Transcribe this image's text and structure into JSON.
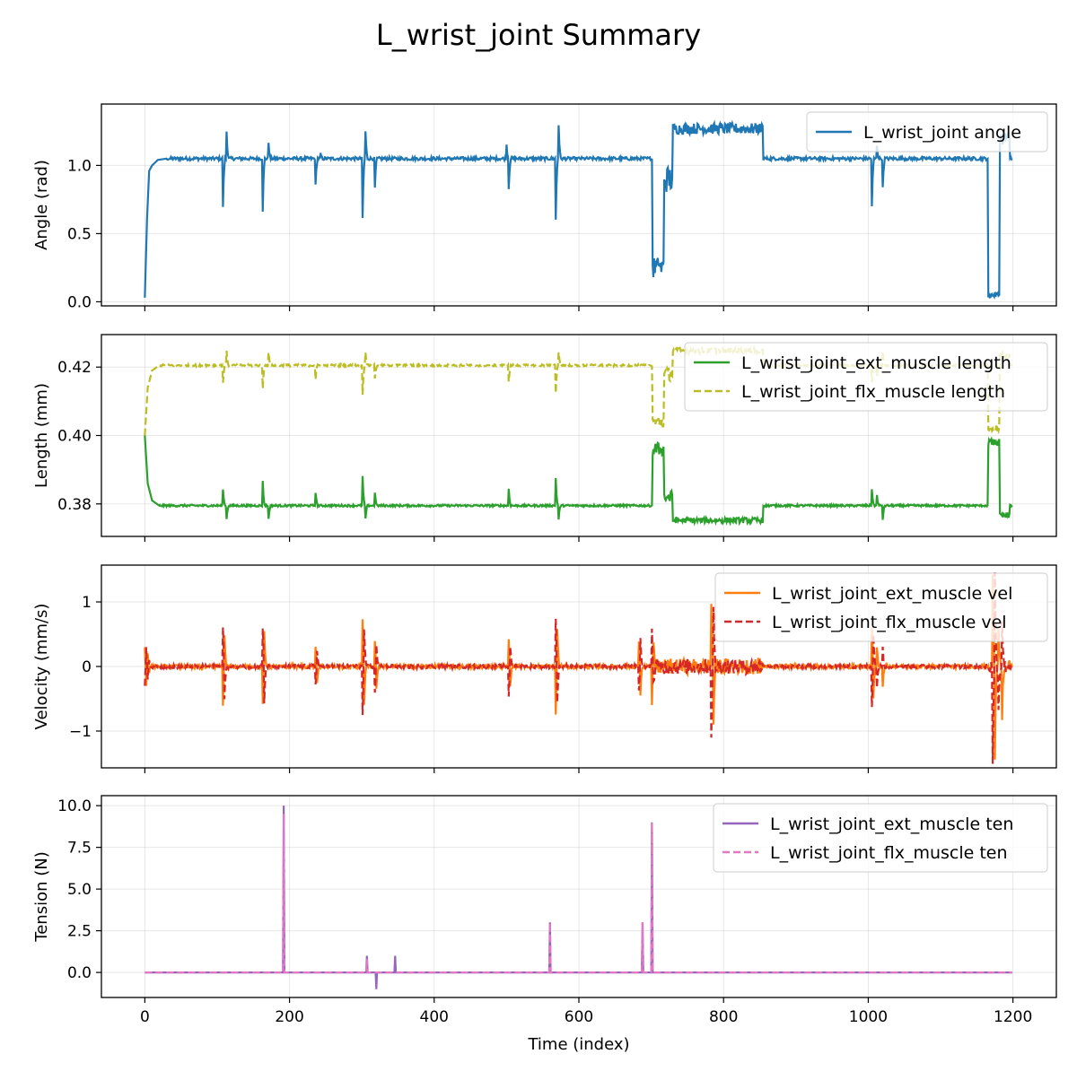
{
  "figure": {
    "title": "L_wrist_joint Summary"
  },
  "chart_data": [
    {
      "type": "line",
      "ylabel": "Angle (rad)",
      "xlim": [
        -60,
        1260
      ],
      "ylim": [
        -0.03,
        1.45
      ],
      "yticks": [
        0.0,
        0.5,
        1.0
      ],
      "ytick_labels": [
        "0.0",
        "0.5",
        "1.0"
      ],
      "grid": true,
      "legend_placement": "upper-right",
      "series": [
        {
          "name": "L_wrist_joint angle",
          "color": "#1f77b4",
          "dash": "solid",
          "base": 1.05,
          "noise": 0.012,
          "points": [
            [
              0,
              0.03
            ],
            [
              3,
              0.6
            ],
            [
              6,
              0.96
            ],
            [
              10,
              1.0
            ],
            [
              18,
              1.04
            ],
            [
              30,
              1.05
            ]
          ],
          "spikes": [
            [
              108,
              -0.35
            ],
            [
              113,
              0.2
            ],
            [
              163,
              -0.38
            ],
            [
              171,
              0.12
            ],
            [
              236,
              -0.2
            ],
            [
              243,
              0.03
            ],
            [
              301,
              -0.44
            ],
            [
              305,
              0.2
            ],
            [
              318,
              -0.22
            ],
            [
              500,
              0.1
            ],
            [
              503,
              -0.22
            ],
            [
              568,
              -0.45
            ],
            [
              572,
              0.25
            ],
            [
              710,
              0.07
            ],
            [
              1005,
              -0.35
            ],
            [
              1012,
              0.1
            ],
            [
              1020,
              -0.22
            ]
          ],
          "segments": [
            {
              "from": 702,
              "to": 718,
              "value": 0.25,
              "noise": 0.08
            },
            {
              "from": 718,
              "to": 730,
              "value": 0.9,
              "noise": 0.1
            },
            {
              "from": 730,
              "to": 855,
              "value": 1.27,
              "noise": 0.04
            },
            {
              "from": 1166,
              "to": 1182,
              "value": 0.05,
              "noise": 0.02
            },
            {
              "from": 1182,
              "to": 1196,
              "value": 1.2,
              "noise": 0.05
            }
          ]
        }
      ]
    },
    {
      "type": "line",
      "ylabel": "Length (mm)",
      "xlim": [
        -60,
        1260
      ],
      "ylim": [
        0.3705,
        0.4295
      ],
      "yticks": [
        0.38,
        0.4,
        0.42
      ],
      "ytick_labels": [
        "0.38",
        "0.40",
        "0.42"
      ],
      "grid": true,
      "legend_placement": "upper-right",
      "series": [
        {
          "name": "L_wrist_joint_ext_muscle length",
          "color": "#2ca02c",
          "dash": "solid",
          "base": 0.3795,
          "noise": 0.0003,
          "points": [
            [
              0,
              0.4
            ],
            [
              4,
              0.386
            ],
            [
              10,
              0.381
            ],
            [
              20,
              0.3795
            ]
          ],
          "spikes": [
            [
              108,
              0.005
            ],
            [
              113,
              -0.004
            ],
            [
              163,
              0.007
            ],
            [
              171,
              -0.004
            ],
            [
              236,
              0.004
            ],
            [
              301,
              0.0085
            ],
            [
              305,
              -0.004
            ],
            [
              318,
              0.004
            ],
            [
              503,
              0.005
            ],
            [
              568,
              0.008
            ],
            [
              572,
              -0.004
            ],
            [
              1005,
              0.005
            ],
            [
              1012,
              0.003
            ],
            [
              1020,
              -0.004
            ]
          ],
          "segments": [
            {
              "from": 702,
              "to": 718,
              "value": 0.396,
              "noise": 0.002
            },
            {
              "from": 718,
              "to": 730,
              "value": 0.382,
              "noise": 0.002
            },
            {
              "from": 730,
              "to": 855,
              "value": 0.3752,
              "noise": 0.0008
            },
            {
              "from": 1166,
              "to": 1182,
              "value": 0.398,
              "noise": 0.001
            },
            {
              "from": 1182,
              "to": 1196,
              "value": 0.3765,
              "noise": 0.001
            }
          ]
        },
        {
          "name": "L_wrist_joint_flx_muscle length",
          "color": "#bcbd22",
          "dash": "dashed",
          "base": 0.4205,
          "noise": 0.0003,
          "points": [
            [
              0,
              0.4
            ],
            [
              4,
              0.414
            ],
            [
              10,
              0.419
            ],
            [
              20,
              0.4205
            ]
          ],
          "spikes": [
            [
              108,
              -0.005
            ],
            [
              113,
              0.004
            ],
            [
              163,
              -0.007
            ],
            [
              171,
              0.004
            ],
            [
              236,
              -0.004
            ],
            [
              301,
              -0.0085
            ],
            [
              305,
              0.004
            ],
            [
              318,
              -0.004
            ],
            [
              503,
              -0.005
            ],
            [
              568,
              -0.008
            ],
            [
              572,
              0.004
            ],
            [
              1005,
              -0.005
            ],
            [
              1012,
              -0.003
            ],
            [
              1020,
              0.004
            ]
          ],
          "segments": [
            {
              "from": 702,
              "to": 718,
              "value": 0.404,
              "noise": 0.002
            },
            {
              "from": 718,
              "to": 730,
              "value": 0.418,
              "noise": 0.002
            },
            {
              "from": 730,
              "to": 855,
              "value": 0.4248,
              "noise": 0.0008
            },
            {
              "from": 1166,
              "to": 1182,
              "value": 0.402,
              "noise": 0.001
            },
            {
              "from": 1182,
              "to": 1196,
              "value": 0.4235,
              "noise": 0.001
            }
          ]
        }
      ]
    },
    {
      "type": "line",
      "ylabel": "Velocity (mm/s)",
      "xlim": [
        -60,
        1260
      ],
      "ylim": [
        -1.57,
        1.57
      ],
      "yticks": [
        -1,
        0,
        1
      ],
      "ytick_labels": [
        "−1",
        "0",
        "1"
      ],
      "grid": true,
      "legend_placement": "upper-right",
      "series": [
        {
          "name": "L_wrist_joint_ext_muscle vel",
          "color": "#ff7f0e",
          "dash": "solid",
          "base": 0,
          "noise": 0.03,
          "points": [
            [
              0,
              0.3
            ],
            [
              2,
              -0.3
            ],
            [
              4,
              0.2
            ],
            [
              6,
              -0.1
            ]
          ],
          "spikes": [
            [
              108,
              -0.6
            ],
            [
              110,
              0.6
            ],
            [
              163,
              -0.6
            ],
            [
              165,
              0.65
            ],
            [
              236,
              0.3
            ],
            [
              238,
              -0.3
            ],
            [
              301,
              0.75
            ],
            [
              303,
              -0.7
            ],
            [
              318,
              0.4
            ],
            [
              320,
              -0.4
            ],
            [
              503,
              0.45
            ],
            [
              505,
              -0.4
            ],
            [
              568,
              -0.75
            ],
            [
              570,
              0.7
            ],
            [
              683,
              0.4
            ],
            [
              685,
              -0.5
            ],
            [
              701,
              -0.6
            ],
            [
              703,
              0.4
            ],
            [
              783,
              1.0
            ],
            [
              786,
              -0.9
            ],
            [
              1005,
              0.6
            ],
            [
              1007,
              -0.6
            ],
            [
              1012,
              0.3
            ],
            [
              1020,
              -0.3
            ],
            [
              1172,
              1.45
            ],
            [
              1175,
              -1.4
            ],
            [
              1180,
              0.7
            ],
            [
              1185,
              -0.75
            ]
          ],
          "segments": [
            {
              "from": 702,
              "to": 855,
              "value": 0,
              "noise": 0.12
            },
            {
              "from": 1166,
              "to": 1196,
              "value": 0,
              "noise": 0.1
            }
          ]
        },
        {
          "name": "L_wrist_joint_flx_muscle vel",
          "color": "#d62728",
          "dash": "dashed",
          "base": 0,
          "noise": 0.03,
          "points": [
            [
              0,
              -0.3
            ],
            [
              2,
              0.3
            ],
            [
              4,
              -0.2
            ],
            [
              6,
              0.1
            ]
          ],
          "spikes": [
            [
              108,
              0.6
            ],
            [
              110,
              -0.6
            ],
            [
              163,
              0.6
            ],
            [
              165,
              -0.65
            ],
            [
              236,
              -0.3
            ],
            [
              238,
              0.3
            ],
            [
              301,
              -0.75
            ],
            [
              303,
              0.7
            ],
            [
              318,
              -0.4
            ],
            [
              320,
              0.4
            ],
            [
              503,
              -0.45
            ],
            [
              505,
              0.4
            ],
            [
              568,
              0.75
            ],
            [
              570,
              -0.7
            ],
            [
              683,
              -0.4
            ],
            [
              685,
              0.5
            ],
            [
              701,
              0.6
            ],
            [
              703,
              -0.4
            ],
            [
              783,
              -1.0
            ],
            [
              786,
              0.9
            ],
            [
              1005,
              -0.6
            ],
            [
              1007,
              0.6
            ],
            [
              1012,
              -0.3
            ],
            [
              1020,
              0.3
            ],
            [
              1172,
              -1.45
            ],
            [
              1175,
              1.4
            ],
            [
              1180,
              -0.7
            ],
            [
              1185,
              0.75
            ]
          ],
          "segments": [
            {
              "from": 702,
              "to": 855,
              "value": 0,
              "noise": 0.12
            },
            {
              "from": 1166,
              "to": 1196,
              "value": 0,
              "noise": 0.1
            }
          ]
        }
      ]
    },
    {
      "type": "line",
      "ylabel": "Tension (N)",
      "xlabel": "Time (index)",
      "xlim": [
        -60,
        1260
      ],
      "ylim": [
        -1.5,
        10.6
      ],
      "yticks": [
        0.0,
        2.5,
        5.0,
        7.5,
        10.0
      ],
      "ytick_labels": [
        "0.0",
        "2.5",
        "5.0",
        "7.5",
        "10.0"
      ],
      "xticks": [
        0,
        200,
        400,
        600,
        800,
        1000,
        1200
      ],
      "xtick_labels": [
        "0",
        "200",
        "400",
        "600",
        "800",
        "1000",
        "1200"
      ],
      "grid": true,
      "legend_placement": "upper-right",
      "series": [
        {
          "name": "L_wrist_joint_ext_muscle ten",
          "color": "#9467bd",
          "dash": "solid",
          "base": 0,
          "noise": 0,
          "points": [],
          "spikes": [
            [
              192,
              10.0
            ],
            [
              307,
              1.0
            ],
            [
              320,
              -1.0
            ],
            [
              346,
              1.0
            ],
            [
              560,
              3.0
            ],
            [
              688,
              3.0
            ],
            [
              701,
              9.0
            ]
          ],
          "segments": []
        },
        {
          "name": "L_wrist_joint_flx_muscle ten",
          "color": "#e377c2",
          "dash": "dashed",
          "base": 0,
          "noise": 0,
          "points": [],
          "spikes": [
            [
              192,
              9.5
            ],
            [
              307,
              0.8
            ],
            [
              560,
              3.0
            ],
            [
              688,
              3.0
            ],
            [
              701,
              9.0
            ]
          ],
          "segments": []
        }
      ]
    }
  ]
}
